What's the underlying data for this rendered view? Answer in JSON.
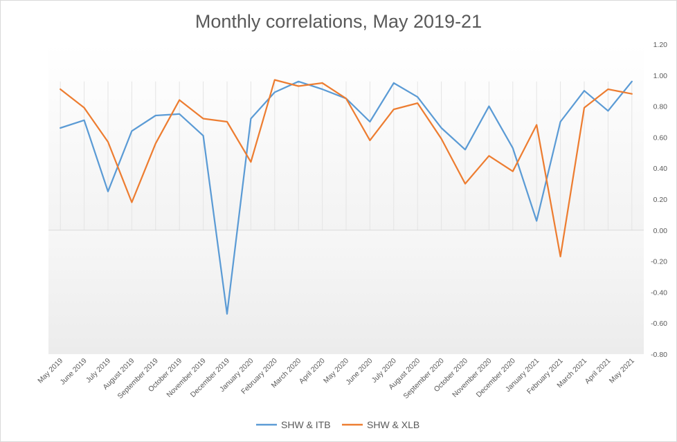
{
  "chart_data": {
    "type": "line",
    "title": "Monthly correlations,  May 2019-21",
    "categories": [
      "May 2019",
      "June 2019",
      "July 2019",
      "August 2019",
      "September 2019",
      "October 2019",
      "November 2019",
      "December 2019",
      "January 2020",
      "February 2020",
      "March 2020",
      "April 2020",
      "May 2020",
      "June 2020",
      "July 2020",
      "August 2020",
      "September 2020",
      "October 2020",
      "November 2020",
      "December 2020",
      "January 2021",
      "February 2021",
      "March 2021",
      "April 2021",
      "May 2021"
    ],
    "ylim": [
      -0.8,
      1.2
    ],
    "yticks": [
      1.2,
      1.0,
      0.8,
      0.6,
      0.4,
      0.2,
      0.0,
      -0.2,
      -0.4,
      -0.6,
      -0.8
    ],
    "ytick_labels": [
      "1.20",
      "1.00",
      "0.80",
      "0.60",
      "0.40",
      "0.20",
      "0.00",
      "-0.20",
      "-0.40",
      "-0.60",
      "-0.80"
    ],
    "axis_side": "right",
    "legend_position": "bottom",
    "series": [
      {
        "name": "SHW & ITB",
        "color": "#5b9bd5",
        "values": [
          0.66,
          0.71,
          0.25,
          0.64,
          0.74,
          0.75,
          0.61,
          -0.54,
          0.72,
          0.89,
          0.96,
          0.91,
          0.85,
          0.7,
          0.95,
          0.86,
          0.66,
          0.52,
          0.8,
          0.53,
          0.06,
          0.7,
          0.9,
          0.77,
          0.96
        ]
      },
      {
        "name": "SHW & XLB",
        "color": "#ed7d31",
        "values": [
          0.91,
          0.79,
          0.57,
          0.18,
          0.56,
          0.84,
          0.72,
          0.7,
          0.44,
          0.97,
          0.93,
          0.95,
          0.85,
          0.58,
          0.78,
          0.82,
          0.59,
          0.3,
          0.48,
          0.38,
          0.68,
          -0.17,
          0.79,
          0.91,
          0.88
        ]
      }
    ]
  }
}
